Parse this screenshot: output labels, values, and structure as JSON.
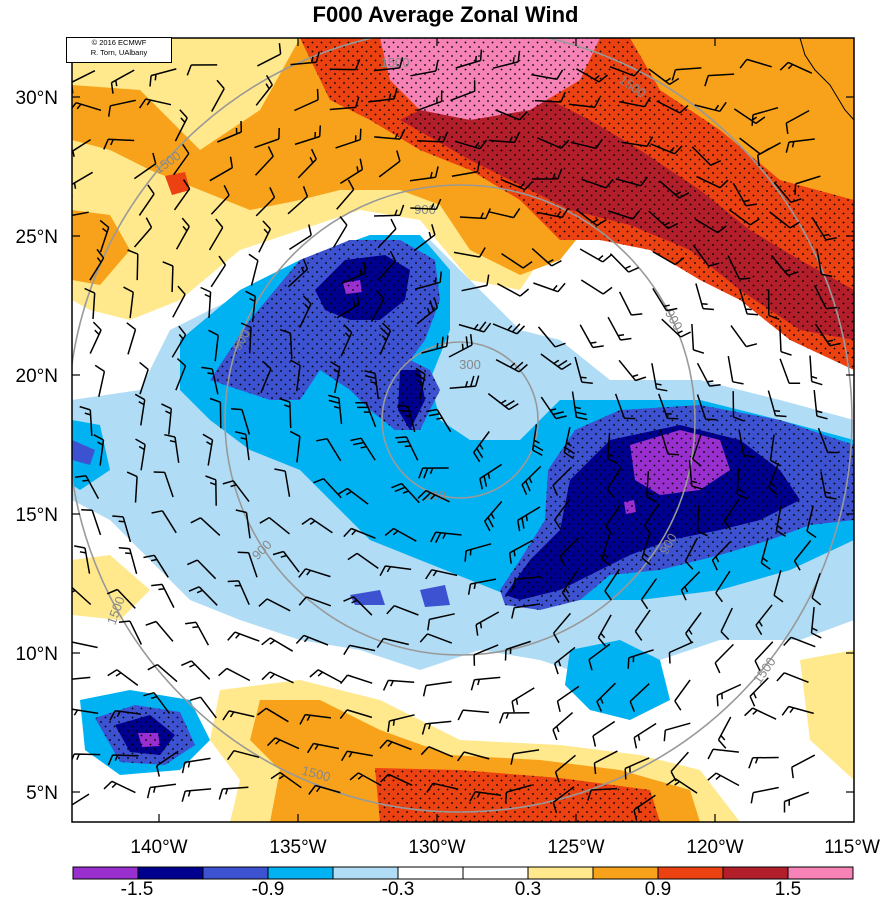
{
  "title": "F000 Average Zonal Wind",
  "credit": {
    "line1": "© 2016 ECMWF",
    "line2": "R. Torn, UAlbany"
  },
  "axes": {
    "lat_labels": [
      "30°N",
      "25°N",
      "20°N",
      "15°N",
      "10°N",
      "5°N"
    ],
    "lon_labels": [
      "140°W",
      "135°W",
      "130°W",
      "125°W",
      "120°W",
      "115°W"
    ]
  },
  "range_rings": {
    "labels": [
      "300",
      "300",
      "900",
      "900",
      "900",
      "900",
      "900",
      "1500",
      "1500",
      "1500",
      "1500",
      "1500",
      "1500"
    ]
  },
  "colorbar": {
    "tick_labels": [
      "-1.5",
      "-0.9",
      "-0.3",
      "0.3",
      "0.9",
      "1.5"
    ],
    "colors": [
      "#9a2fd0",
      "#00008f",
      "#3d52d1",
      "#00b2f2",
      "#b0dcf6",
      "#ffffff",
      "#ffffff",
      "#ffe98c",
      "#f7a21a",
      "#ec4212",
      "#b31e2b",
      "#f783b6"
    ]
  },
  "colors": {
    "background": "#ffffff",
    "rings": "#999999",
    "barbs": "#000000",
    "stipple": "#000000"
  }
}
